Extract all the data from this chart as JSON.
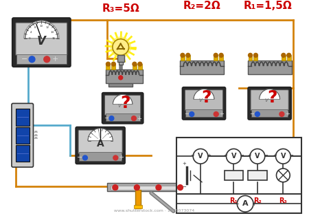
{
  "bg_color": "#ffffff",
  "wire_orange": "#D4820A",
  "wire_cyan": "#55AACC",
  "wire_blue": "#3399CC",
  "red_text": "#CC0000",
  "watermark": "1678073074",
  "labels": {
    "R3": "R₃=5Ω",
    "R2": "R₂=2Ω",
    "R1": "R₁=1,5Ω"
  }
}
